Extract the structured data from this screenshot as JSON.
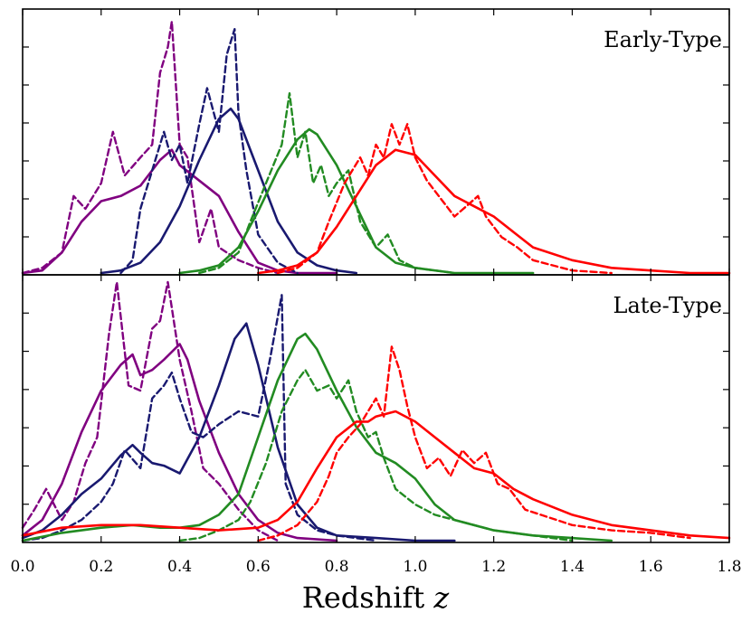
{
  "chart_data": {
    "type": "line",
    "title": "",
    "xlabel": "Redshift",
    "xlabel_var": "z",
    "xlim": [
      0.0,
      1.8
    ],
    "ylim": [
      0,
      1
    ],
    "x_ticks": [
      "0.0",
      "0.2",
      "0.4",
      "0.6",
      "0.8",
      "1.0",
      "1.2",
      "1.4",
      "1.6",
      "1.8"
    ],
    "y_tick_labels_shown": false,
    "colors": {
      "purple": "#800080",
      "navy": "#191970",
      "green": "#228b22",
      "red": "#ff0000"
    },
    "panels": [
      {
        "title": "Early-Type",
        "series": [
          {
            "name": "purple-solid",
            "color": "purple",
            "style": "solid",
            "x": [
              0.0,
              0.05,
              0.1,
              0.15,
              0.2,
              0.25,
              0.3,
              0.35,
              0.38,
              0.4,
              0.45,
              0.5,
              0.55,
              0.6,
              0.65,
              0.7,
              0.8
            ],
            "y": [
              0.0,
              0.01,
              0.08,
              0.2,
              0.28,
              0.3,
              0.34,
              0.44,
              0.48,
              0.42,
              0.36,
              0.3,
              0.16,
              0.04,
              0.01,
              0.0,
              0.0
            ]
          },
          {
            "name": "purple-dashed",
            "color": "purple",
            "style": "dashed",
            "x": [
              0.0,
              0.05,
              0.1,
              0.13,
              0.16,
              0.2,
              0.23,
              0.26,
              0.3,
              0.33,
              0.35,
              0.37,
              0.38,
              0.4,
              0.42,
              0.45,
              0.48,
              0.5,
              0.55,
              0.6,
              0.65
            ],
            "y": [
              0.0,
              0.02,
              0.08,
              0.3,
              0.25,
              0.35,
              0.55,
              0.38,
              0.45,
              0.5,
              0.78,
              0.88,
              0.98,
              0.5,
              0.45,
              0.12,
              0.25,
              0.1,
              0.05,
              0.02,
              0.0
            ]
          },
          {
            "name": "navy-solid",
            "color": "navy",
            "style": "solid",
            "x": [
              0.2,
              0.25,
              0.3,
              0.35,
              0.4,
              0.45,
              0.5,
              0.53,
              0.55,
              0.6,
              0.65,
              0.7,
              0.75,
              0.8,
              0.85
            ],
            "y": [
              0.0,
              0.01,
              0.04,
              0.12,
              0.26,
              0.44,
              0.6,
              0.64,
              0.6,
              0.4,
              0.2,
              0.08,
              0.03,
              0.01,
              0.0
            ]
          },
          {
            "name": "navy-dashed",
            "color": "navy",
            "style": "dashed",
            "x": [
              0.25,
              0.28,
              0.3,
              0.33,
              0.36,
              0.38,
              0.4,
              0.42,
              0.45,
              0.47,
              0.5,
              0.52,
              0.54,
              0.55,
              0.57,
              0.6,
              0.65,
              0.7
            ],
            "y": [
              0.0,
              0.05,
              0.25,
              0.4,
              0.55,
              0.44,
              0.5,
              0.35,
              0.58,
              0.72,
              0.55,
              0.85,
              0.95,
              0.62,
              0.4,
              0.15,
              0.04,
              0.0
            ]
          },
          {
            "name": "green-solid",
            "color": "green",
            "style": "solid",
            "x": [
              0.4,
              0.45,
              0.5,
              0.55,
              0.6,
              0.65,
              0.7,
              0.73,
              0.75,
              0.8,
              0.85,
              0.9,
              0.95,
              1.0,
              1.1,
              1.2,
              1.3
            ],
            "y": [
              0.0,
              0.01,
              0.03,
              0.1,
              0.24,
              0.4,
              0.52,
              0.56,
              0.54,
              0.42,
              0.26,
              0.1,
              0.04,
              0.02,
              0.0,
              0.0,
              0.0
            ]
          },
          {
            "name": "green-dashed",
            "color": "green",
            "style": "dashed",
            "x": [
              0.45,
              0.5,
              0.55,
              0.58,
              0.62,
              0.66,
              0.68,
              0.7,
              0.72,
              0.74,
              0.76,
              0.78,
              0.8,
              0.83,
              0.86,
              0.9,
              0.93,
              0.96,
              1.0,
              1.1
            ],
            "y": [
              0.0,
              0.02,
              0.08,
              0.2,
              0.35,
              0.5,
              0.7,
              0.45,
              0.55,
              0.35,
              0.42,
              0.3,
              0.35,
              0.4,
              0.2,
              0.1,
              0.15,
              0.05,
              0.02,
              0.0
            ]
          },
          {
            "name": "red-solid",
            "color": "red",
            "style": "solid",
            "x": [
              0.6,
              0.65,
              0.7,
              0.75,
              0.8,
              0.85,
              0.9,
              0.95,
              1.0,
              1.05,
              1.1,
              1.15,
              1.2,
              1.25,
              1.3,
              1.4,
              1.5,
              1.6,
              1.7,
              1.8
            ],
            "y": [
              0.0,
              0.01,
              0.03,
              0.08,
              0.18,
              0.3,
              0.42,
              0.48,
              0.46,
              0.38,
              0.3,
              0.26,
              0.22,
              0.16,
              0.1,
              0.05,
              0.02,
              0.01,
              0.0,
              0.0
            ]
          },
          {
            "name": "red-dashed",
            "color": "red",
            "style": "dashed",
            "x": [
              0.65,
              0.7,
              0.75,
              0.78,
              0.82,
              0.86,
              0.88,
              0.9,
              0.92,
              0.94,
              0.96,
              0.98,
              1.0,
              1.03,
              1.06,
              1.1,
              1.13,
              1.16,
              1.18,
              1.22,
              1.26,
              1.3,
              1.35,
              1.4,
              1.5
            ],
            "y": [
              0.0,
              0.02,
              0.08,
              0.2,
              0.35,
              0.45,
              0.38,
              0.5,
              0.45,
              0.58,
              0.5,
              0.58,
              0.45,
              0.36,
              0.3,
              0.22,
              0.26,
              0.3,
              0.22,
              0.14,
              0.1,
              0.05,
              0.03,
              0.01,
              0.0
            ]
          }
        ]
      },
      {
        "title": "Late-Type",
        "series": [
          {
            "name": "purple-solid",
            "color": "purple",
            "style": "solid",
            "x": [
              0.0,
              0.05,
              0.1,
              0.15,
              0.2,
              0.25,
              0.28,
              0.3,
              0.33,
              0.36,
              0.4,
              0.42,
              0.45,
              0.5,
              0.55,
              0.6,
              0.65,
              0.7,
              0.8
            ],
            "y": [
              0.02,
              0.08,
              0.22,
              0.42,
              0.58,
              0.68,
              0.72,
              0.64,
              0.66,
              0.7,
              0.76,
              0.7,
              0.54,
              0.34,
              0.18,
              0.08,
              0.03,
              0.01,
              0.0
            ]
          },
          {
            "name": "purple-dashed",
            "color": "purple",
            "style": "dashed",
            "x": [
              0.0,
              0.03,
              0.06,
              0.1,
              0.13,
              0.16,
              0.19,
              0.22,
              0.24,
              0.27,
              0.3,
              0.33,
              0.35,
              0.37,
              0.38,
              0.4,
              0.43,
              0.46,
              0.5,
              0.55,
              0.6,
              0.65
            ],
            "y": [
              0.05,
              0.12,
              0.2,
              0.08,
              0.15,
              0.3,
              0.4,
              0.8,
              1.0,
              0.6,
              0.58,
              0.82,
              0.85,
              1.0,
              0.9,
              0.7,
              0.5,
              0.28,
              0.22,
              0.12,
              0.04,
              0.0
            ]
          },
          {
            "name": "navy-solid",
            "color": "navy",
            "style": "solid",
            "x": [
              0.0,
              0.05,
              0.1,
              0.15,
              0.2,
              0.25,
              0.28,
              0.3,
              0.33,
              0.36,
              0.4,
              0.45,
              0.5,
              0.54,
              0.57,
              0.6,
              0.65,
              0.7,
              0.75,
              0.8,
              0.9,
              1.0,
              1.1
            ],
            "y": [
              0.01,
              0.04,
              0.1,
              0.18,
              0.24,
              0.33,
              0.37,
              0.34,
              0.3,
              0.29,
              0.26,
              0.4,
              0.6,
              0.78,
              0.84,
              0.68,
              0.36,
              0.14,
              0.05,
              0.02,
              0.01,
              0.0,
              0.0
            ]
          },
          {
            "name": "navy-dashed",
            "color": "navy",
            "style": "dashed",
            "x": [
              0.0,
              0.05,
              0.1,
              0.15,
              0.2,
              0.23,
              0.26,
              0.3,
              0.33,
              0.36,
              0.38,
              0.4,
              0.43,
              0.46,
              0.5,
              0.55,
              0.6,
              0.63,
              0.66,
              0.67,
              0.7,
              0.75,
              0.8,
              0.9
            ],
            "y": [
              0.0,
              0.01,
              0.04,
              0.08,
              0.15,
              0.22,
              0.35,
              0.28,
              0.55,
              0.6,
              0.65,
              0.55,
              0.42,
              0.4,
              0.45,
              0.5,
              0.48,
              0.7,
              0.95,
              0.22,
              0.1,
              0.04,
              0.02,
              0.0
            ]
          },
          {
            "name": "green-solid",
            "color": "green",
            "style": "solid",
            "x": [
              0.0,
              0.1,
              0.2,
              0.28,
              0.35,
              0.4,
              0.45,
              0.5,
              0.55,
              0.6,
              0.65,
              0.7,
              0.72,
              0.75,
              0.8,
              0.85,
              0.9,
              0.95,
              1.0,
              1.05,
              1.1,
              1.2,
              1.3,
              1.4,
              1.5
            ],
            "y": [
              0.0,
              0.03,
              0.05,
              0.06,
              0.05,
              0.05,
              0.06,
              0.1,
              0.18,
              0.4,
              0.62,
              0.78,
              0.8,
              0.74,
              0.58,
              0.44,
              0.34,
              0.3,
              0.24,
              0.14,
              0.08,
              0.04,
              0.02,
              0.01,
              0.0
            ]
          },
          {
            "name": "green-dashed",
            "color": "green",
            "style": "dashed",
            "x": [
              0.4,
              0.45,
              0.5,
              0.55,
              0.58,
              0.62,
              0.66,
              0.7,
              0.72,
              0.75,
              0.78,
              0.8,
              0.83,
              0.85,
              0.88,
              0.9,
              0.92,
              0.95,
              1.0,
              1.05,
              1.1,
              1.15,
              1.2,
              1.3,
              1.4
            ],
            "y": [
              0.0,
              0.01,
              0.04,
              0.08,
              0.15,
              0.3,
              0.5,
              0.62,
              0.66,
              0.58,
              0.6,
              0.55,
              0.62,
              0.5,
              0.4,
              0.42,
              0.32,
              0.2,
              0.14,
              0.1,
              0.08,
              0.06,
              0.04,
              0.02,
              0.0
            ]
          },
          {
            "name": "red-solid",
            "color": "red",
            "style": "solid",
            "x": [
              0.0,
              0.1,
              0.2,
              0.3,
              0.4,
              0.5,
              0.6,
              0.65,
              0.7,
              0.75,
              0.8,
              0.85,
              0.88,
              0.9,
              0.95,
              1.0,
              1.05,
              1.1,
              1.15,
              1.2,
              1.25,
              1.3,
              1.4,
              1.5,
              1.6,
              1.7,
              1.8
            ],
            "y": [
              0.02,
              0.05,
              0.06,
              0.06,
              0.05,
              0.04,
              0.05,
              0.08,
              0.15,
              0.28,
              0.4,
              0.46,
              0.46,
              0.48,
              0.5,
              0.46,
              0.4,
              0.34,
              0.28,
              0.26,
              0.2,
              0.16,
              0.1,
              0.06,
              0.04,
              0.02,
              0.01
            ]
          },
          {
            "name": "red-dashed",
            "color": "red",
            "style": "dashed",
            "x": [
              0.6,
              0.65,
              0.7,
              0.75,
              0.78,
              0.8,
              0.83,
              0.86,
              0.88,
              0.9,
              0.92,
              0.94,
              0.96,
              0.98,
              1.0,
              1.03,
              1.06,
              1.09,
              1.12,
              1.15,
              1.18,
              1.21,
              1.24,
              1.28,
              1.32,
              1.36,
              1.4,
              1.45,
              1.5,
              1.6,
              1.7
            ],
            "y": [
              0.0,
              0.02,
              0.06,
              0.15,
              0.25,
              0.34,
              0.4,
              0.45,
              0.5,
              0.55,
              0.48,
              0.75,
              0.66,
              0.52,
              0.4,
              0.28,
              0.32,
              0.25,
              0.35,
              0.3,
              0.34,
              0.22,
              0.2,
              0.12,
              0.1,
              0.08,
              0.06,
              0.05,
              0.04,
              0.03,
              0.01
            ]
          }
        ]
      }
    ]
  }
}
